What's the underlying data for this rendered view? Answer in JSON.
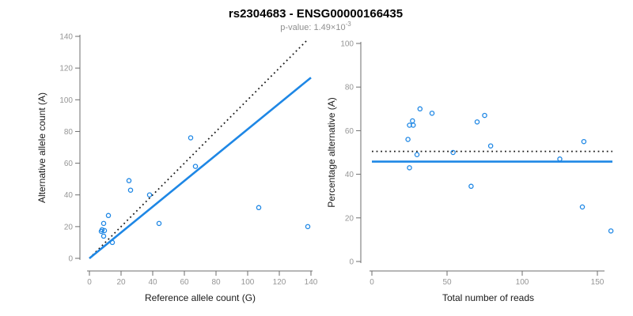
{
  "header": {
    "title": "rs2304683 - ENSG00000166435",
    "subtitle_prefix": "p-value: 1.49×10",
    "subtitle_exponent": "-3"
  },
  "colors": {
    "accent_blue": "#1E87E5",
    "dotted_line": "#1a1a1a",
    "tick_label": "#969696",
    "axis_line": "#6e6e6e",
    "title": "#000000",
    "subtitle": "#8f8f8f",
    "background": "#ffffff"
  },
  "chart_data": [
    {
      "type": "scatter",
      "name": "allele-counts-scatter",
      "xlabel": "Reference allele count (G)",
      "ylabel": "Alternative allele count (A)",
      "xlim": [
        0,
        140
      ],
      "ylim": [
        0,
        140
      ],
      "xticks": [
        0,
        20,
        40,
        60,
        80,
        100,
        120,
        140
      ],
      "yticks": [
        0,
        20,
        40,
        60,
        80,
        100,
        120,
        140
      ],
      "grid": false,
      "points": [
        [
          7.5,
          17
        ],
        [
          8,
          18
        ],
        [
          9.5,
          17.5
        ],
        [
          9,
          14
        ],
        [
          9,
          22
        ],
        [
          12,
          27
        ],
        [
          14.5,
          10
        ],
        [
          25,
          49
        ],
        [
          26,
          43
        ],
        [
          38,
          40
        ],
        [
          44,
          22
        ],
        [
          64,
          76
        ],
        [
          67,
          58
        ],
        [
          107,
          32
        ],
        [
          138,
          20
        ]
      ],
      "lines": [
        {
          "name": "identity-line-dotted",
          "style": "dotted",
          "color": "#1a1a1a",
          "x1": 0,
          "y1": 0,
          "x2": 138,
          "y2": 138
        },
        {
          "name": "fit-line-solid",
          "style": "solid",
          "color": "#1E87E5",
          "x1": 0,
          "y1": 0,
          "x2": 140,
          "y2": 114
        }
      ]
    },
    {
      "type": "scatter",
      "name": "percentage-alternative-scatter",
      "xlabel": "Total number of reads",
      "ylabel": "Percentage alternative (A)",
      "xlim": [
        0,
        160
      ],
      "ylim": [
        0,
        100
      ],
      "xticks": [
        0,
        50,
        100,
        150
      ],
      "yticks": [
        0,
        20,
        40,
        60,
        80,
        100
      ],
      "grid": false,
      "points": [
        [
          32,
          70
        ],
        [
          40,
          68
        ],
        [
          27,
          64.5
        ],
        [
          25,
          62.5
        ],
        [
          27.5,
          62.5
        ],
        [
          24,
          56
        ],
        [
          30,
          49
        ],
        [
          25,
          43
        ],
        [
          54,
          50
        ],
        [
          70,
          64
        ],
        [
          75,
          67
        ],
        [
          79,
          53
        ],
        [
          66,
          34.5
        ],
        [
          125,
          47
        ],
        [
          141,
          55
        ],
        [
          140,
          25
        ],
        [
          159,
          14
        ]
      ],
      "lines": [
        {
          "name": "expected-line-dotted",
          "style": "dotted",
          "color": "#1a1a1a",
          "x1": 0,
          "y1": 50.5,
          "x2": 160,
          "y2": 50.5
        },
        {
          "name": "observed-line-solid",
          "style": "solid",
          "color": "#1E87E5",
          "x1": 0,
          "y1": 45.8,
          "x2": 160,
          "y2": 45.8
        }
      ]
    }
  ]
}
